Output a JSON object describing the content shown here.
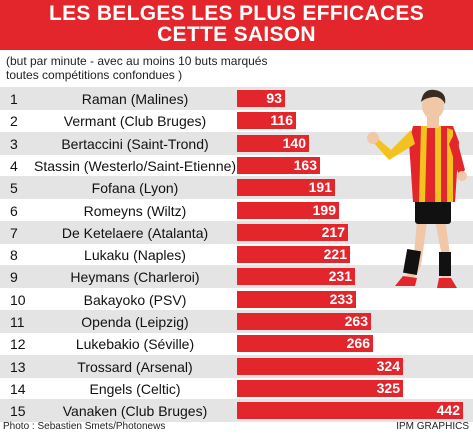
{
  "title": {
    "line1": "LES BELGES LES PLUS EFFICACES",
    "line2": "CETTE SAISON"
  },
  "subtitle": {
    "line1": "(but par minute - avec au moins 10 buts marqués",
    "line2": "toutes compétitions confondues )"
  },
  "colors": {
    "accent": "#e3262b",
    "shade": "#e4e4e4"
  },
  "chart_data": {
    "type": "bar",
    "orientation": "horizontal",
    "title": "LES BELGES LES PLUS EFFICACES CETTE SAISON",
    "subtitle": "(but par minute - avec au moins 10 buts marqués toutes compétitions confondues )",
    "ranks": [
      "1",
      "2",
      "3",
      "4",
      "5",
      "6",
      "7",
      "8",
      "9",
      "10",
      "11",
      "12",
      "13",
      "14",
      "15"
    ],
    "categories": [
      "Raman (Malines)",
      "Vermant (Club Bruges)",
      "Bertaccini (Saint-Trond)",
      "Stassin (Westerlo/Saint-Etienne)",
      "Fofana (Lyon)",
      "Romeyns (Wiltz)",
      "De Ketelaere (Atalanta)",
      "Lukaku (Naples)",
      "Heymans (Charleroi)",
      "Bakayoko (PSV)",
      "Openda (Leipzig)",
      "Lukebakio (Séville)",
      "Trossard (Arsenal)",
      "Engels (Celtic)",
      "Vanaken (Club Bruges)"
    ],
    "values": [
      93,
      116,
      140,
      163,
      191,
      199,
      217,
      221,
      231,
      233,
      263,
      266,
      324,
      325,
      442
    ],
    "xlim": [
      0,
      442
    ],
    "grid": false
  },
  "footer": {
    "photo_credit": "Photo : Sebastien Smets/Photonews",
    "source": "IPM GRAPHICS"
  }
}
